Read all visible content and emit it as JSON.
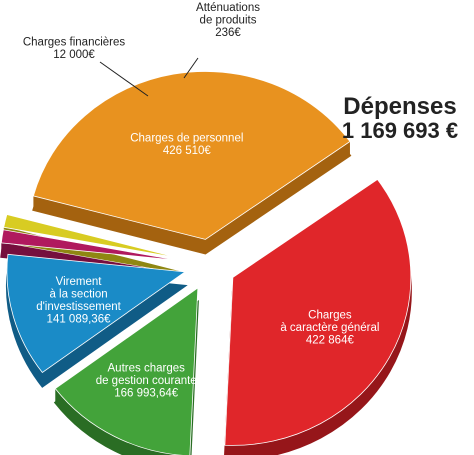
{
  "header": {
    "title": "Dépenses",
    "total": "1 169 693 €"
  },
  "chart_data": {
    "type": "pie",
    "title": "Dépenses",
    "total_label": "1 169 693 €",
    "categories": [
      "Charges de personnel",
      "Charges à caractère général",
      "Autres charges de gestion courante",
      "Virement à la section d'investissement",
      "Charges financières",
      "Atténuations de produits"
    ],
    "values": [
      426510,
      422864,
      166993.64,
      141089.36,
      12000,
      236
    ],
    "slices": [
      {
        "name": "Charges de personnel",
        "label_lines": [
          "Charges de personnel",
          "426 510€"
        ],
        "value": 426510,
        "color": "#e8921f",
        "side": "#a4620f",
        "label_position": "inside"
      },
      {
        "name": "Charges à caractère général",
        "label_lines": [
          "Charges",
          "à caractère général",
          "422 864€"
        ],
        "value": 422864,
        "color": "#e0262a",
        "side": "#96161a",
        "label_position": "inside"
      },
      {
        "name": "Autres charges de gestion courante",
        "label_lines": [
          "Autres charges",
          "de gestion courante",
          "166 993,64€"
        ],
        "value": 166993.64,
        "color": "#43a33a",
        "side": "#2a6d24",
        "label_position": "inside"
      },
      {
        "name": "Virement à la section d'investissement",
        "label_lines": [
          "Virement",
          "à la section",
          "d'investissement",
          "141 089,36€"
        ],
        "value": 141089.36,
        "color": "#1a8bc7",
        "side": "#105c86",
        "label_position": "inside"
      },
      {
        "name": "Charges financières",
        "label_lines": [
          "Charges financières",
          "12 000€"
        ],
        "value": 12000,
        "color": "#b0195e",
        "side": "#750f3e",
        "label_position": "outside"
      },
      {
        "name": "Atténuations de produits",
        "label_lines": [
          "Atténuations",
          "de produits",
          "236€"
        ],
        "value": 236,
        "color": "#d8cc22",
        "side": "#8f8712",
        "label_position": "outside"
      }
    ],
    "exploded": true,
    "style": "3d",
    "legend": "none"
  }
}
